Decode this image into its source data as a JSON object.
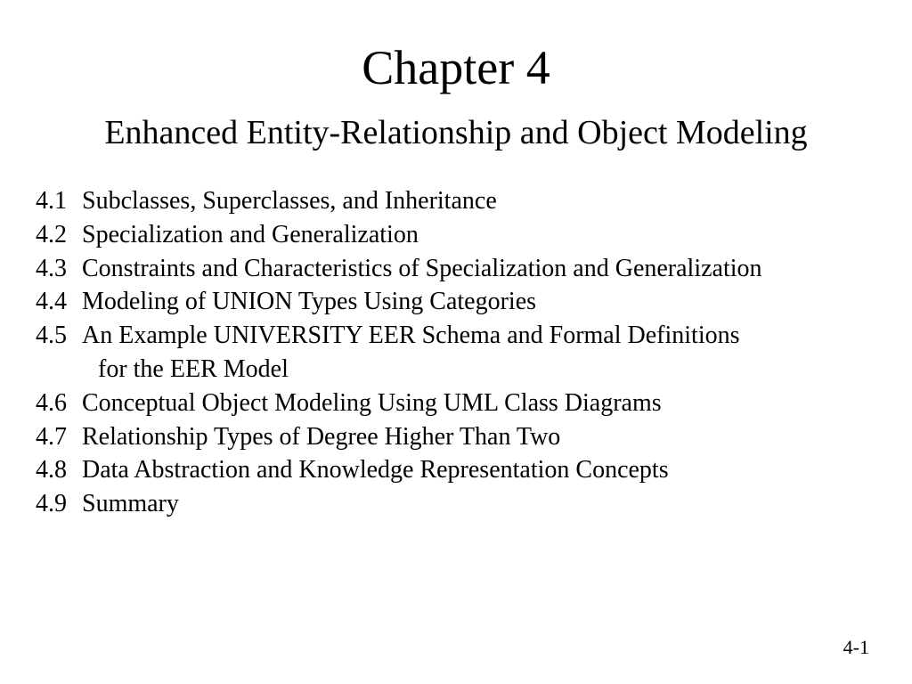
{
  "chapter_title": "Chapter 4",
  "chapter_subtitle": "Enhanced Entity-Relationship and Object Modeling",
  "toc_items": [
    {
      "number": "4.1",
      "text": "Subclasses, Superclasses, and Inheritance"
    },
    {
      "number": "4.2",
      "text": "Specialization and Generalization"
    },
    {
      "number": "4.3",
      "text": "Constraints and Characteristics of Specialization and Generalization"
    },
    {
      "number": "4.4",
      "text": "Modeling of UNION Types Using Categories"
    },
    {
      "number": "4.5",
      "text": "An Example UNIVERSITY EER Schema and Formal Definitions",
      "continuation": "for the EER Model"
    },
    {
      "number": "4.6",
      "text": "Conceptual Object Modeling Using UML Class Diagrams"
    },
    {
      "number": "4.7",
      "text": "Relationship Types of Degree Higher Than Two"
    },
    {
      "number": "4.8",
      "text": "Data Abstraction and Knowledge Representation Concepts"
    },
    {
      "number": "4.9",
      "text": "Summary"
    }
  ],
  "page_number": "4-1",
  "colors": {
    "background": "#ffffff",
    "text": "#000000"
  },
  "typography": {
    "font_family": "Times New Roman",
    "title_fontsize": 54,
    "subtitle_fontsize": 38,
    "body_fontsize": 28,
    "page_number_fontsize": 22
  }
}
